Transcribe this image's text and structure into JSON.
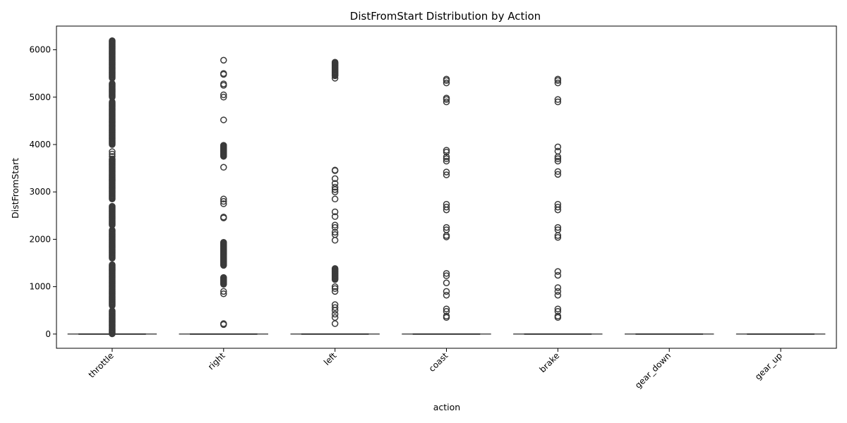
{
  "chart_data": {
    "type": "box",
    "title": "DistFromStart Distribution by Action",
    "xlabel": "action",
    "ylabel": "DistFromStart",
    "ylim": [
      -300,
      6500
    ],
    "yticks": [
      0,
      1000,
      2000,
      3000,
      4000,
      5000,
      6000
    ],
    "categories": [
      "throttle",
      "right",
      "left",
      "coast",
      "brake",
      "gear_down",
      "gear_up"
    ],
    "colors": {
      "box": "#3a3a3a",
      "axis": "#000000",
      "background": "#ffffff"
    },
    "series": [
      {
        "category": "throttle",
        "median": 0,
        "q1": 0,
        "q3": 0,
        "whisker_low": 0,
        "whisker_high": 0,
        "outliers_dense_ranges": [
          [
            5,
            500
          ],
          [
            600,
            1480
          ],
          [
            1600,
            2200
          ],
          [
            2300,
            2700
          ],
          [
            2850,
            3700
          ],
          [
            4000,
            4900
          ],
          [
            5000,
            5300
          ],
          [
            5400,
            6200
          ]
        ],
        "outliers": [
          3750,
          3800,
          3850
        ]
      },
      {
        "category": "right",
        "median": 0,
        "q1": 0,
        "q3": 0,
        "whisker_low": 0,
        "whisker_high": 0,
        "outliers_dense_ranges": [
          [
            1050,
            1200
          ],
          [
            1450,
            1950
          ],
          [
            3750,
            4000
          ]
        ],
        "outliers": [
          200,
          220,
          850,
          900,
          2450,
          2470,
          2750,
          2800,
          2850,
          3520,
          4520,
          5000,
          5050,
          5250,
          5280,
          5480,
          5500,
          5780
        ]
      },
      {
        "category": "left",
        "median": 0,
        "q1": 0,
        "q3": 0,
        "whisker_low": 0,
        "whisker_high": 0,
        "outliers_dense_ranges": [
          [
            1150,
            1400
          ],
          [
            5450,
            5750
          ]
        ],
        "outliers": [
          220,
          350,
          420,
          500,
          560,
          620,
          900,
          960,
          1000,
          1980,
          2100,
          2150,
          2250,
          2300,
          2480,
          2580,
          2850,
          3000,
          3050,
          3100,
          3180,
          3280,
          3450,
          3460,
          5400
        ]
      },
      {
        "category": "coast",
        "median": 0,
        "q1": 0,
        "q3": 0,
        "whisker_low": 0,
        "whisker_high": 0,
        "outliers_dense_ranges": [],
        "outliers": [
          350,
          380,
          480,
          530,
          820,
          900,
          1080,
          1230,
          1280,
          2050,
          2080,
          2200,
          2250,
          2620,
          2680,
          2740,
          3360,
          3420,
          3650,
          3700,
          3740,
          3840,
          3880,
          4900,
          4950,
          4980,
          5300,
          5350,
          5380
        ]
      },
      {
        "category": "brake",
        "median": 0,
        "q1": 0,
        "q3": 0,
        "whisker_low": 0,
        "whisker_high": 0,
        "outliers_dense_ranges": [],
        "outliers": [
          350,
          380,
          480,
          530,
          820,
          900,
          980,
          1240,
          1320,
          2040,
          2080,
          2200,
          2250,
          2620,
          2680,
          2740,
          3370,
          3430,
          3650,
          3700,
          3740,
          3860,
          3950,
          4900,
          4950,
          5300,
          5350,
          5380
        ]
      },
      {
        "category": "gear_down",
        "median": 0,
        "q1": 0,
        "q3": 0,
        "whisker_low": 0,
        "whisker_high": 0,
        "outliers_dense_ranges": [],
        "outliers": []
      },
      {
        "category": "gear_up",
        "median": 0,
        "q1": 0,
        "q3": 0,
        "whisker_low": 0,
        "whisker_high": 0,
        "outliers_dense_ranges": [],
        "outliers": []
      }
    ],
    "grid": false,
    "legend": "none"
  }
}
